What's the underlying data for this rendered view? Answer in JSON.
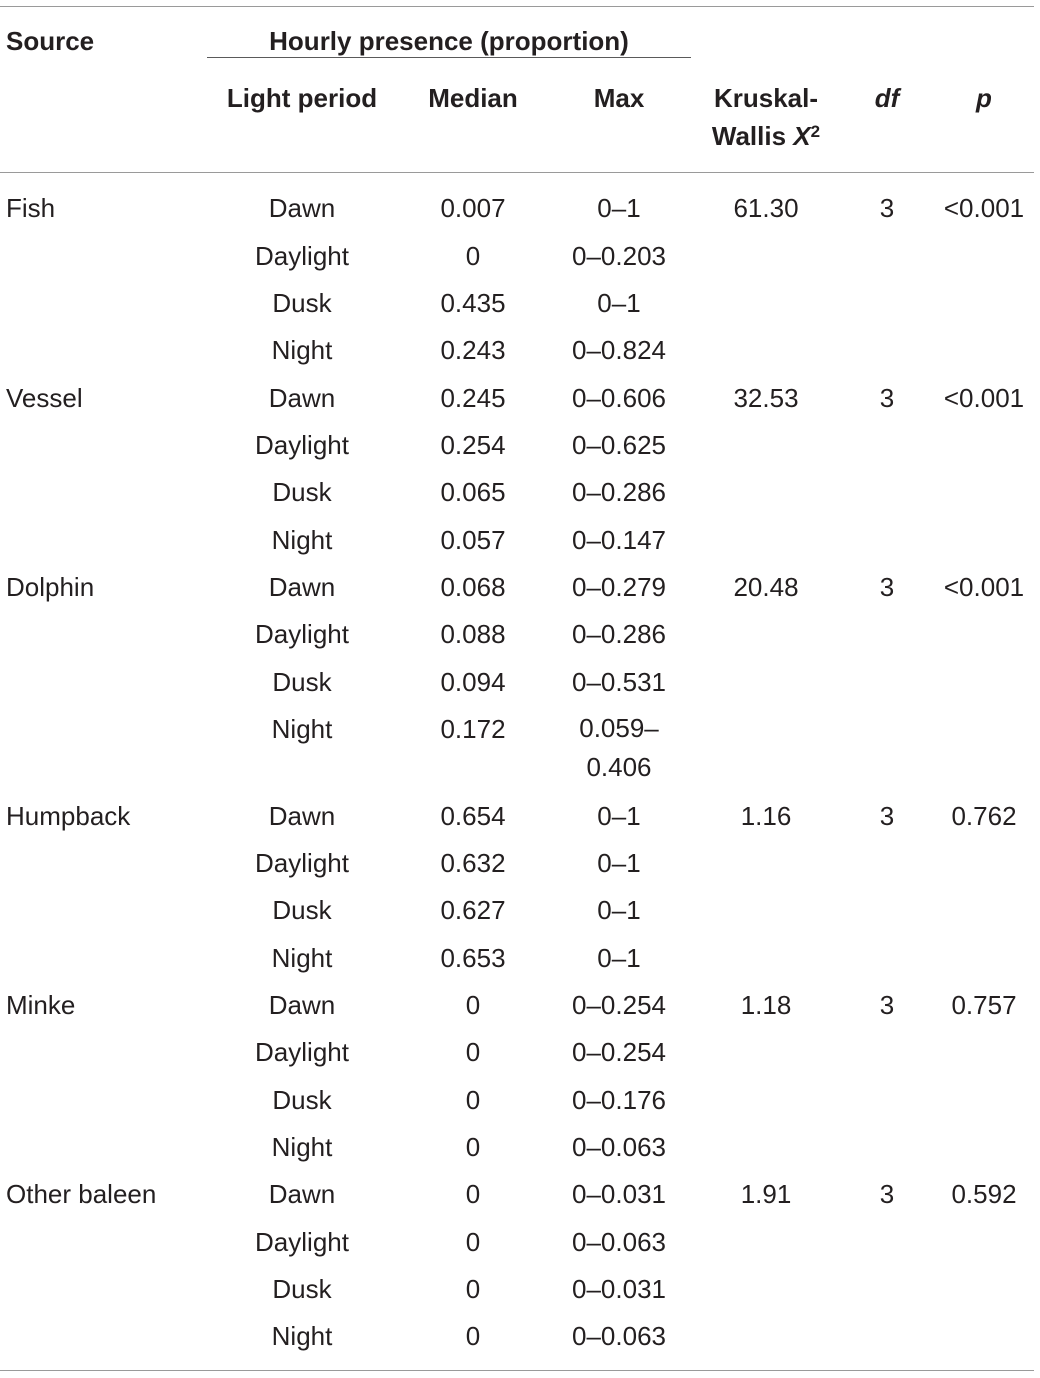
{
  "header": {
    "source": "Source",
    "hourly_presence": "Hourly presence (proportion)",
    "light_period": "Light period",
    "median": "Median",
    "max": "Max",
    "kw_line1": "Kruskal-",
    "kw_line2": "Wallis ",
    "kw_symbol": "X",
    "kw_sup": "2",
    "df": "df",
    "p": "p"
  },
  "rows": [
    {
      "source": "Fish",
      "light": "Dawn",
      "median": "0.007",
      "max": "0–1",
      "kw": "61.30",
      "df": "3",
      "p": "<0.001"
    },
    {
      "source": "",
      "light": "Daylight",
      "median": "0",
      "max": "0–0.203",
      "kw": "",
      "df": "",
      "p": ""
    },
    {
      "source": "",
      "light": "Dusk",
      "median": "0.435",
      "max": "0–1",
      "kw": "",
      "df": "",
      "p": ""
    },
    {
      "source": "",
      "light": "Night",
      "median": "0.243",
      "max": "0–0.824",
      "kw": "",
      "df": "",
      "p": ""
    },
    {
      "source": "Vessel",
      "light": "Dawn",
      "median": "0.245",
      "max": "0–0.606",
      "kw": "32.53",
      "df": "3",
      "p": "<0.001"
    },
    {
      "source": "",
      "light": "Daylight",
      "median": "0.254",
      "max": "0–0.625",
      "kw": "",
      "df": "",
      "p": ""
    },
    {
      "source": "",
      "light": "Dusk",
      "median": "0.065",
      "max": "0–0.286",
      "kw": "",
      "df": "",
      "p": ""
    },
    {
      "source": "",
      "light": "Night",
      "median": "0.057",
      "max": "0–0.147",
      "kw": "",
      "df": "",
      "p": ""
    },
    {
      "source": "Dolphin",
      "light": "Dawn",
      "median": "0.068",
      "max": "0–0.279",
      "kw": "20.48",
      "df": "3",
      "p": "<0.001"
    },
    {
      "source": "",
      "light": "Daylight",
      "median": "0.088",
      "max": "0–0.286",
      "kw": "",
      "df": "",
      "p": ""
    },
    {
      "source": "",
      "light": "Dusk",
      "median": "0.094",
      "max": "0–0.531",
      "kw": "",
      "df": "",
      "p": ""
    },
    {
      "source": "",
      "light": "Night",
      "median": "0.172",
      "max": "0.059–0.406",
      "kw": "",
      "df": "",
      "p": ""
    },
    {
      "source": "Humpback",
      "light": "Dawn",
      "median": "0.654",
      "max": "0–1",
      "kw": "1.16",
      "df": "3",
      "p": "0.762"
    },
    {
      "source": "",
      "light": "Daylight",
      "median": "0.632",
      "max": "0–1",
      "kw": "",
      "df": "",
      "p": ""
    },
    {
      "source": "",
      "light": "Dusk",
      "median": "0.627",
      "max": "0–1",
      "kw": "",
      "df": "",
      "p": ""
    },
    {
      "source": "",
      "light": "Night",
      "median": "0.653",
      "max": "0–1",
      "kw": "",
      "df": "",
      "p": ""
    },
    {
      "source": "Minke",
      "light": "Dawn",
      "median": "0",
      "max": "0–0.254",
      "kw": "1.18",
      "df": "3",
      "p": "0.757"
    },
    {
      "source": "",
      "light": "Daylight",
      "median": "0",
      "max": "0–0.254",
      "kw": "",
      "df": "",
      "p": ""
    },
    {
      "source": "",
      "light": "Dusk",
      "median": "0",
      "max": "0–0.176",
      "kw": "",
      "df": "",
      "p": ""
    },
    {
      "source": "",
      "light": "Night",
      "median": "0",
      "max": "0–0.063",
      "kw": "",
      "df": "",
      "p": ""
    },
    {
      "source": "Other baleen",
      "light": "Dawn",
      "median": "0",
      "max": "0–0.031",
      "kw": "1.91",
      "df": "3",
      "p": "0.592"
    },
    {
      "source": "",
      "light": "Daylight",
      "median": "0",
      "max": "0–0.063",
      "kw": "",
      "df": "",
      "p": ""
    },
    {
      "source": "",
      "light": "Dusk",
      "median": "0",
      "max": "0–0.031",
      "kw": "",
      "df": "",
      "p": ""
    },
    {
      "source": "",
      "light": "Night",
      "median": "0",
      "max": "0–0.063",
      "kw": "",
      "df": "",
      "p": ""
    }
  ]
}
